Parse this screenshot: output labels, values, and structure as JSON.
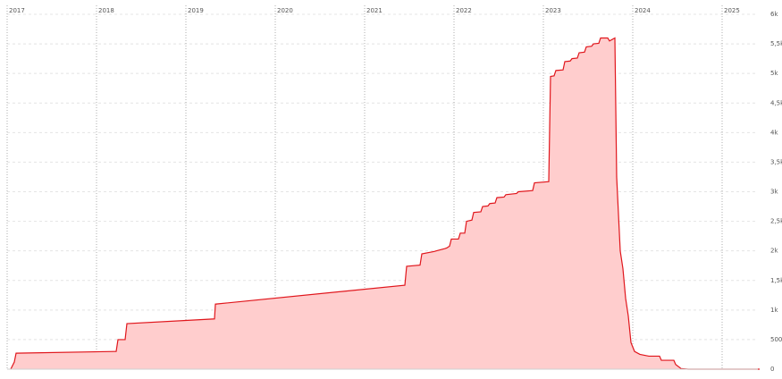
{
  "chart_data": {
    "type": "area",
    "color": "#e0161c",
    "fill": "#ffcdcd",
    "grid": true,
    "xlim": [
      2017,
      2025.4
    ],
    "xticks": [
      2017,
      2018,
      2019,
      2020,
      2021,
      2022,
      2023,
      2024,
      2025
    ],
    "ylim": [
      0,
      6000
    ],
    "yticks": [
      0,
      500,
      {
        "value": 1000,
        "label": "1k"
      },
      {
        "value": 1500,
        "label": "1,5k"
      },
      {
        "value": 2000,
        "label": "2k"
      },
      {
        "value": 2500,
        "label": "2,5k"
      },
      {
        "value": 3000,
        "label": "3k"
      },
      {
        "value": 3500,
        "label": "3,5k"
      },
      {
        "value": 4000,
        "label": "4k"
      },
      {
        "value": 4500,
        "label": "4,5k"
      },
      {
        "value": 5000,
        "label": "5k"
      },
      {
        "value": 5500,
        "label": "5,5k"
      },
      {
        "value": 6000,
        "label": "6k"
      }
    ],
    "x": [
      2017.04,
      2017.08,
      2017.1,
      2018.22,
      2018.24,
      2018.32,
      2018.34,
      2019.32,
      2019.33,
      2021.45,
      2021.47,
      2021.62,
      2021.64,
      2021.78,
      2021.8,
      2021.9,
      2021.92,
      2021.95,
      2021.97,
      2022.05,
      2022.07,
      2022.12,
      2022.14,
      2022.2,
      2022.22,
      2022.3,
      2022.32,
      2022.38,
      2022.4,
      2022.46,
      2022.48,
      2022.56,
      2022.58,
      2022.7,
      2022.72,
      2022.88,
      2022.9,
      2023.06,
      2023.08,
      2023.12,
      2023.14,
      2023.22,
      2023.24,
      2023.3,
      2023.32,
      2023.38,
      2023.4,
      2023.46,
      2023.48,
      2023.54,
      2023.56,
      2023.62,
      2023.64,
      2023.72,
      2023.74,
      2023.8,
      2023.82,
      2023.86,
      2023.89,
      2023.92,
      2023.95,
      2023.98,
      2024.02,
      2024.08,
      2024.18,
      2024.3,
      2024.32,
      2024.46,
      2024.48,
      2024.54,
      2024.62,
      2025.42
    ],
    "values": [
      0,
      120,
      270,
      300,
      500,
      500,
      770,
      850,
      1100,
      1420,
      1740,
      1760,
      1950,
      1990,
      2000,
      2040,
      2050,
      2080,
      2200,
      2200,
      2300,
      2300,
      2500,
      2520,
      2650,
      2660,
      2750,
      2760,
      2800,
      2810,
      2900,
      2910,
      2950,
      2970,
      3000,
      3020,
      3150,
      3170,
      4950,
      4960,
      5050,
      5060,
      5200,
      5210,
      5250,
      5260,
      5350,
      5360,
      5450,
      5460,
      5500,
      5510,
      5600,
      5600,
      5550,
      5600,
      3250,
      2000,
      1700,
      1200,
      900,
      450,
      300,
      250,
      220,
      220,
      150,
      150,
      80,
      10,
      0,
      0
    ]
  }
}
